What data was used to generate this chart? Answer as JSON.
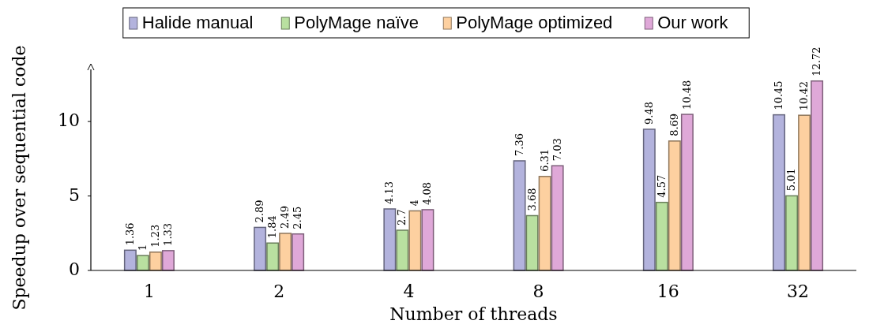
{
  "chart_data": {
    "type": "bar",
    "xlabel": "Number of threads",
    "ylabel": "Speedup over sequential code",
    "categories": [
      "1",
      "2",
      "4",
      "8",
      "16",
      "32"
    ],
    "series": [
      {
        "name": "Halide manual",
        "color": "#b3b3dd",
        "values": [
          1.36,
          2.89,
          4.13,
          7.36,
          9.48,
          10.45
        ]
      },
      {
        "name": "PolyMage naïve",
        "color": "#b9e0a0",
        "values": [
          1,
          1.84,
          2.7,
          3.68,
          4.57,
          5.01
        ]
      },
      {
        "name": "PolyMage optimized",
        "color": "#fdd0a0",
        "values": [
          1.23,
          2.49,
          4,
          6.31,
          8.69,
          10.42
        ]
      },
      {
        "name": "Our work",
        "color": "#dfa8d8",
        "values": [
          1.33,
          2.45,
          4.08,
          7.03,
          10.48,
          12.72
        ]
      }
    ],
    "ylim": [
      0,
      13.5
    ],
    "yticks": [
      0,
      5,
      10
    ],
    "data_labels": true,
    "legend": "top",
    "grid": false
  }
}
